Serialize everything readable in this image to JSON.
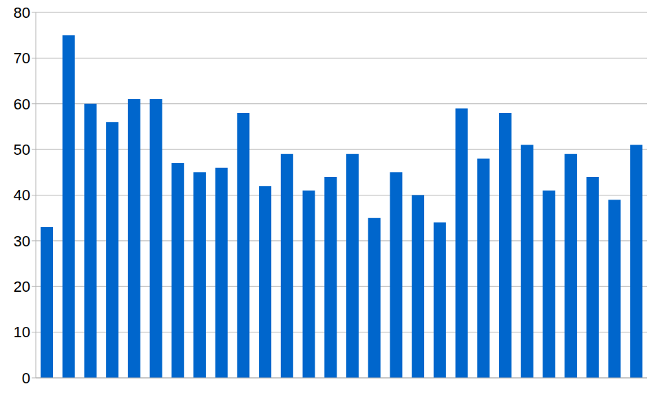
{
  "chart_data": {
    "type": "bar",
    "categories": [
      null,
      null,
      null,
      null,
      null,
      null,
      null,
      null,
      null,
      null,
      null,
      null,
      null,
      null,
      null,
      null,
      null,
      null,
      null,
      null,
      null,
      null,
      null,
      null,
      null,
      null,
      null,
      null
    ],
    "values": [
      33,
      75,
      60,
      56,
      61,
      61,
      47,
      45,
      46,
      58,
      42,
      49,
      41,
      44,
      49,
      35,
      45,
      40,
      34,
      59,
      48,
      58,
      51,
      41,
      49,
      44,
      39,
      51
    ],
    "color": "#0066cc",
    "ylim": [
      0,
      80
    ],
    "yticks": [
      0,
      10,
      20,
      30,
      40,
      50,
      60,
      70,
      80
    ],
    "grid": true,
    "tick_labels": "y"
  }
}
